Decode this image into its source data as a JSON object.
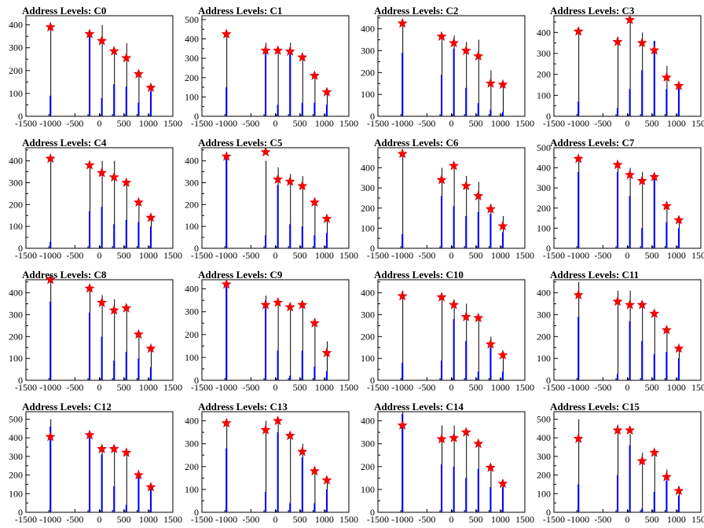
{
  "figure": {
    "colors": {
      "histogram": "#0000ff",
      "outline": "#000000",
      "marker": "#ff0000",
      "marker_edge": "#cc0000"
    }
  },
  "chart_data": [
    {
      "type": "bar",
      "title": "Address Levels: C0",
      "xlim": [
        -1500,
        1500
      ],
      "ylim": [
        0,
        440
      ],
      "yticks": [
        0,
        100,
        200,
        300,
        400
      ],
      "xticks": [
        -1500,
        -1000,
        -500,
        0,
        500,
        1000,
        1500
      ],
      "xticklabels": [
        "-1500",
        "-1000",
        "-500",
        "0",
        "500",
        "1000",
        "1500"
      ],
      "x": [
        -1000,
        -200,
        50,
        300,
        550,
        800,
        1050
      ],
      "blue": [
        90,
        350,
        80,
        140,
        130,
        60,
        110
      ],
      "black": [
        400,
        370,
        400,
        290,
        320,
        190,
        130
      ],
      "markers": [
        390,
        360,
        330,
        285,
        255,
        185,
        125
      ]
    },
    {
      "type": "bar",
      "title": "Address Levels: C1",
      "xlim": [
        -1500,
        1500
      ],
      "ylim": [
        0,
        520
      ],
      "yticks": [
        0,
        100,
        200,
        300,
        400,
        500
      ],
      "xticks": [
        -1500,
        -1000,
        -500,
        0,
        500,
        1000,
        1500
      ],
      "xticklabels": [
        "-1500",
        "-1000",
        "-500",
        "0",
        "500",
        "1000",
        "1500"
      ],
      "x": [
        -1000,
        -200,
        50,
        300,
        550,
        800,
        1050
      ],
      "blue": [
        150,
        330,
        60,
        320,
        70,
        70,
        60
      ],
      "black": [
        430,
        380,
        340,
        380,
        310,
        220,
        130
      ],
      "markers": [
        425,
        340,
        340,
        335,
        305,
        210,
        125
      ]
    },
    {
      "type": "bar",
      "title": "Address Levels: C2",
      "xlim": [
        -1500,
        1500
      ],
      "ylim": [
        0,
        460
      ],
      "yticks": [
        0,
        100,
        200,
        300,
        400
      ],
      "xticks": [
        -1500,
        -1000,
        -500,
        0,
        500,
        1000,
        1500
      ],
      "xticklabels": [
        "-1500",
        "-1000",
        "-500",
        "0",
        "500",
        "1000",
        "1500"
      ],
      "x": [
        -1000,
        -200,
        50,
        300,
        550,
        800,
        1050
      ],
      "blue": [
        290,
        190,
        310,
        130,
        60,
        30,
        20
      ],
      "black": [
        440,
        380,
        370,
        340,
        350,
        210,
        160
      ],
      "markers": [
        425,
        365,
        335,
        300,
        275,
        150,
        145
      ]
    },
    {
      "type": "bar",
      "title": "Address Levels: C3",
      "xlim": [
        -1500,
        1500
      ],
      "ylim": [
        0,
        480
      ],
      "yticks": [
        0,
        100,
        200,
        300,
        400
      ],
      "xticks": [
        -1500,
        -1000,
        -500,
        0,
        500,
        1000,
        1500
      ],
      "xticklabels": [
        "-1500",
        "-1000",
        "-500",
        "0",
        "500",
        "1000",
        "1500"
      ],
      "x": [
        -1000,
        -200,
        50,
        300,
        550,
        800,
        1050
      ],
      "blue": [
        70,
        40,
        130,
        220,
        360,
        130,
        140
      ],
      "black": [
        420,
        380,
        460,
        400,
        360,
        240,
        160
      ],
      "markers": [
        405,
        355,
        460,
        350,
        315,
        185,
        145
      ]
    },
    {
      "type": "bar",
      "title": "Address Levels: C4",
      "xlim": [
        -1500,
        1500
      ],
      "ylim": [
        0,
        460
      ],
      "yticks": [
        0,
        100,
        200,
        300,
        400
      ],
      "xticks": [
        -1500,
        -1000,
        -500,
        0,
        500,
        1000,
        1500
      ],
      "xticklabels": [
        "-1500",
        "-1000",
        "-500",
        "0",
        "500",
        "1000",
        "1500"
      ],
      "x": [
        -1000,
        -200,
        50,
        300,
        550,
        800,
        1050
      ],
      "blue": [
        30,
        170,
        190,
        110,
        130,
        120,
        100
      ],
      "black": [
        420,
        370,
        400,
        400,
        310,
        210,
        150
      ],
      "markers": [
        410,
        380,
        345,
        325,
        300,
        210,
        140
      ]
    },
    {
      "type": "bar",
      "title": "Address Levels: C5",
      "xlim": [
        -1500,
        1500
      ],
      "ylim": [
        0,
        460
      ],
      "yticks": [
        0,
        100,
        200,
        300,
        400
      ],
      "xticks": [
        -1500,
        -1000,
        -500,
        0,
        500,
        1000,
        1500
      ],
      "xticklabels": [
        "-1500",
        "-1000",
        "-500",
        "0",
        "500",
        "1000",
        "1500"
      ],
      "x": [
        -1000,
        -200,
        50,
        300,
        550,
        800,
        1050
      ],
      "blue": [
        410,
        60,
        290,
        110,
        100,
        60,
        70
      ],
      "black": [
        430,
        400,
        370,
        340,
        330,
        230,
        150
      ],
      "markers": [
        420,
        440,
        315,
        305,
        285,
        210,
        135
      ]
    },
    {
      "type": "bar",
      "title": "Address Levels: C6",
      "xlim": [
        -1500,
        1500
      ],
      "ylim": [
        0,
        500
      ],
      "yticks": [
        0,
        100,
        200,
        300,
        400
      ],
      "xticks": [
        -1500,
        -1000,
        -500,
        0,
        500,
        1000,
        1500
      ],
      "xticklabels": [
        "-1500",
        "-1000",
        "-500",
        "0",
        "500",
        "1000",
        "1500"
      ],
      "x": [
        -1000,
        -200,
        50,
        300,
        550,
        800,
        1050
      ],
      "blue": [
        70,
        260,
        210,
        160,
        180,
        170,
        80
      ],
      "black": [
        470,
        400,
        410,
        360,
        330,
        220,
        160
      ],
      "markers": [
        470,
        340,
        410,
        310,
        260,
        195,
        110
      ]
    },
    {
      "type": "bar",
      "title": "Address Levels: C7",
      "xlim": [
        -1500,
        1500
      ],
      "ylim": [
        0,
        500
      ],
      "yticks": [
        0,
        100,
        200,
        300,
        400,
        500
      ],
      "xticks": [
        -1500,
        -1000,
        -500,
        0,
        500,
        1000,
        1500
      ],
      "xticklabels": [
        "-1500",
        "-1000",
        "-500",
        "0",
        "500",
        "1000",
        "1500"
      ],
      "x": [
        -1000,
        -200,
        50,
        300,
        550,
        800,
        1050
      ],
      "blue": [
        380,
        380,
        260,
        100,
        360,
        130,
        100
      ],
      "black": [
        460,
        420,
        400,
        380,
        370,
        230,
        160
      ],
      "markers": [
        445,
        415,
        365,
        335,
        355,
        210,
        140
      ]
    },
    {
      "type": "bar",
      "title": "Address Levels: C8",
      "xlim": [
        -1500,
        1500
      ],
      "ylim": [
        0,
        460
      ],
      "yticks": [
        0,
        100,
        200,
        300,
        400
      ],
      "xticks": [
        -1500,
        -1000,
        -500,
        0,
        500,
        1000,
        1500
      ],
      "xticklabels": [
        "-1500",
        "-1000",
        "-500",
        "0",
        "500",
        "1000",
        "1500"
      ],
      "x": [
        -1000,
        -200,
        50,
        300,
        550,
        800,
        1050
      ],
      "blue": [
        360,
        310,
        200,
        90,
        130,
        100,
        60
      ],
      "black": [
        460,
        430,
        390,
        370,
        340,
        220,
        150
      ],
      "markers": [
        460,
        420,
        355,
        320,
        330,
        210,
        145
      ]
    },
    {
      "type": "bar",
      "title": "Address Levels: C9",
      "xlim": [
        -1500,
        1500
      ],
      "ylim": [
        0,
        440
      ],
      "yticks": [
        0,
        100,
        200,
        300,
        400
      ],
      "xticks": [
        -1500,
        -1000,
        -500,
        0,
        500,
        1000,
        1500
      ],
      "xticklabels": [
        "-1500",
        "-1000",
        "-500",
        "0",
        "500",
        "1000",
        "1500"
      ],
      "x": [
        -1000,
        -200,
        50,
        300,
        550,
        800,
        1050
      ],
      "blue": [
        410,
        350,
        130,
        20,
        130,
        60,
        40
      ],
      "black": [
        430,
        370,
        360,
        340,
        340,
        270,
        170
      ],
      "markers": [
        420,
        330,
        340,
        320,
        330,
        250,
        120
      ]
    },
    {
      "type": "bar",
      "title": "Address Levels: C10",
      "xlim": [
        -1500,
        1500
      ],
      "ylim": [
        0,
        460
      ],
      "yticks": [
        0,
        100,
        200,
        300,
        400
      ],
      "xticks": [
        -1500,
        -1000,
        -500,
        0,
        500,
        1000,
        1500
      ],
      "xticklabels": [
        "-1500",
        "-1000",
        "-500",
        "0",
        "500",
        "1000",
        "1500"
      ],
      "x": [
        -1000,
        -200,
        50,
        300,
        550,
        800,
        1050
      ],
      "blue": [
        80,
        90,
        280,
        180,
        40,
        150,
        40
      ],
      "black": [
        410,
        390,
        370,
        350,
        300,
        200,
        130
      ],
      "markers": [
        385,
        380,
        345,
        290,
        285,
        165,
        115
      ]
    },
    {
      "type": "bar",
      "title": "Address Levels: C11",
      "xlim": [
        -1500,
        1500
      ],
      "ylim": [
        0,
        460
      ],
      "yticks": [
        0,
        100,
        200,
        300,
        400
      ],
      "xticks": [
        -1500,
        -1000,
        -500,
        0,
        500,
        1000,
        1500
      ],
      "xticklabels": [
        "-1500",
        "-1000",
        "-500",
        "0",
        "500",
        "1000",
        "1500"
      ],
      "x": [
        -1000,
        -200,
        50,
        300,
        550,
        800,
        1050
      ],
      "blue": [
        290,
        30,
        270,
        180,
        120,
        130,
        100
      ],
      "black": [
        450,
        410,
        410,
        360,
        320,
        240,
        160
      ],
      "markers": [
        390,
        360,
        345,
        345,
        305,
        230,
        145
      ]
    },
    {
      "type": "bar",
      "title": "Address Levels: C12",
      "xlim": [
        -1500,
        1500
      ],
      "ylim": [
        0,
        540
      ],
      "yticks": [
        0,
        100,
        200,
        300,
        400,
        500
      ],
      "xticks": [
        -1500,
        -1000,
        -500,
        0,
        500,
        1000,
        1500
      ],
      "xticklabels": [
        "-1500",
        "-1000",
        "-500",
        "0",
        "500",
        "1000",
        "1500"
      ],
      "x": [
        -1000,
        -200,
        50,
        300,
        550,
        800,
        1050
      ],
      "blue": [
        460,
        400,
        310,
        140,
        40,
        190,
        130
      ],
      "black": [
        500,
        410,
        360,
        360,
        330,
        220,
        140
      ],
      "markers": [
        405,
        415,
        340,
        340,
        320,
        200,
        135
      ]
    },
    {
      "type": "bar",
      "title": "Address Levels: C13",
      "xlim": [
        -1500,
        1500
      ],
      "ylim": [
        0,
        440
      ],
      "yticks": [
        0,
        100,
        200,
        300,
        400
      ],
      "xticks": [
        -1500,
        -1000,
        -500,
        0,
        500,
        1000,
        1500
      ],
      "xticklabels": [
        "-1500",
        "-1000",
        "-500",
        "0",
        "500",
        "1000",
        "1500"
      ],
      "x": [
        -1000,
        -200,
        50,
        300,
        550,
        800,
        1050
      ],
      "blue": [
        280,
        90,
        350,
        40,
        240,
        40,
        100
      ],
      "black": [
        410,
        400,
        400,
        350,
        300,
        200,
        140
      ],
      "markers": [
        390,
        360,
        400,
        335,
        265,
        180,
        140
      ]
    },
    {
      "type": "bar",
      "title": "Address Levels: C14",
      "xlim": [
        -1500,
        1500
      ],
      "ylim": [
        0,
        440
      ],
      "yticks": [
        0,
        100,
        200,
        300,
        400
      ],
      "xticks": [
        -1500,
        -1000,
        -500,
        0,
        500,
        1000,
        1500
      ],
      "xticklabels": [
        "-1500",
        "-1000",
        "-500",
        "0",
        "500",
        "1000",
        "1500"
      ],
      "x": [
        -1000,
        -200,
        50,
        300,
        550,
        800,
        1050
      ],
      "blue": [
        430,
        210,
        200,
        150,
        190,
        110,
        110
      ],
      "black": [
        440,
        380,
        380,
        350,
        310,
        210,
        140
      ],
      "markers": [
        380,
        320,
        325,
        350,
        300,
        195,
        125
      ]
    },
    {
      "type": "bar",
      "title": "Address Levels: C15",
      "xlim": [
        -1500,
        1500
      ],
      "ylim": [
        0,
        540
      ],
      "yticks": [
        0,
        100,
        200,
        300,
        400,
        500
      ],
      "xticks": [
        -1500,
        -1000,
        -500,
        0,
        500,
        1000,
        1500
      ],
      "xticklabels": [
        "-1500",
        "-1000",
        "-500",
        "0",
        "500",
        "1000",
        "1500"
      ],
      "x": [
        -1000,
        -200,
        50,
        300,
        550,
        800,
        1050
      ],
      "blue": [
        150,
        200,
        360,
        20,
        110,
        170,
        90
      ],
      "black": [
        500,
        470,
        420,
        320,
        340,
        230,
        140
      ],
      "markers": [
        395,
        440,
        440,
        275,
        320,
        190,
        115
      ]
    }
  ]
}
